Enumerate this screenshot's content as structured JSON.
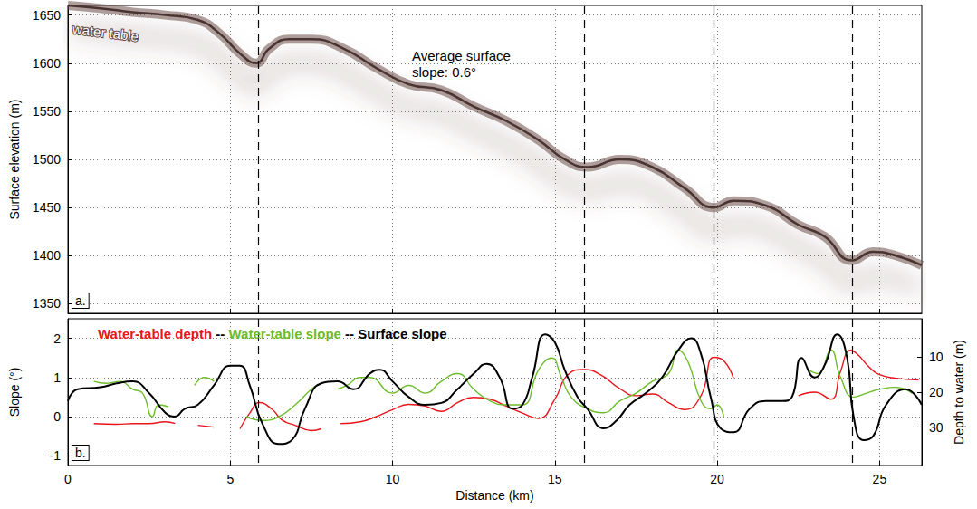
{
  "chart_data": [
    {
      "type": "line",
      "panel_label": "a.",
      "y_label": "Surface elevation (m)",
      "annotations": [
        "water table",
        "Average surface slope: 0.6°"
      ],
      "xlim": [
        0,
        26.3
      ],
      "xticks": [
        0,
        5,
        10,
        15,
        20,
        25
      ],
      "ylim": [
        1340,
        1660
      ],
      "yticks": [
        1350,
        1400,
        1450,
        1500,
        1550,
        1600,
        1650
      ],
      "grid": true,
      "tick_labels": "y",
      "vlines": [
        5.85,
        15.9,
        19.9,
        24.15
      ],
      "series": [
        {
          "color": "#4a3431",
          "x": [
            0,
            1,
            2,
            3,
            4,
            4.7,
            5.3,
            5.8,
            6.2,
            6.8,
            7.5,
            8.5,
            9.5,
            10.5,
            11.5,
            12.5,
            13.5,
            14.5,
            15.3,
            16,
            17,
            18,
            19,
            19.9,
            20.5,
            21.5,
            22.5,
            23.3,
            24.15,
            24.8,
            25.5,
            26.3
          ],
          "values": [
            1660,
            1657,
            1653,
            1650,
            1645,
            1630,
            1610,
            1600,
            1615,
            1625,
            1625,
            1615,
            1595,
            1578,
            1572,
            1555,
            1540,
            1520,
            1500,
            1492,
            1500,
            1492,
            1470,
            1450,
            1457,
            1452,
            1432,
            1420,
            1395,
            1404,
            1400,
            1390
          ]
        }
      ]
    },
    {
      "type": "line",
      "panel_label": "b.",
      "x_label": "Distance (km)",
      "y_label": "Slope (°)",
      "y2_label": "Depth to water (m)",
      "legend": "upper left",
      "legend_separator": " -- ",
      "xlim": [
        0,
        26.3
      ],
      "xticks": [
        0,
        5,
        10,
        15,
        20,
        25
      ],
      "ylim": [
        -1.25,
        2.5
      ],
      "yticks": [
        -1,
        0,
        1,
        2
      ],
      "y2lim": [
        41,
        -1
      ],
      "y2ticks": [
        10,
        20,
        30
      ],
      "grid": true,
      "vlines": [
        5.85,
        15.9,
        19.9,
        24.15
      ],
      "series": [
        {
          "name": "Water-table depth",
          "color": "#e8141a",
          "axis": "y2",
          "x": [
            0.8,
            1.5,
            2,
            2.5,
            3,
            3.3,
            3.6,
            4,
            4.5,
            4.9,
            5.3,
            5.6,
            5.9,
            6.3,
            6.6,
            7,
            7.5,
            7.8,
            8.1,
            8.4,
            9,
            9.5,
            10,
            10.5,
            11,
            11.5,
            12,
            12.5,
            13,
            13.5,
            14,
            14.5,
            15,
            15.4,
            15.9,
            16.4,
            17,
            17.5,
            18,
            18.5,
            19,
            19.5,
            19.9,
            20.2,
            20.5,
            21.5,
            22.5,
            23,
            23.5,
            23.8,
            24.1,
            24.3,
            24.7,
            25,
            25.5,
            26.2
          ],
          "values": [
            29,
            29.2,
            29,
            29,
            28.5,
            29,
            null,
            29.5,
            30,
            null,
            30.5,
            26,
            23,
            25,
            28,
            29.5,
            31,
            30.5,
            null,
            29,
            28.5,
            27,
            25,
            23.5,
            24,
            25.5,
            23,
            21.5,
            22,
            24,
            26,
            27.5,
            22,
            15,
            13.5,
            15,
            19,
            21,
            20.5,
            23,
            25,
            21,
            10,
            11,
            16,
            null,
            21,
            20,
            22,
            14,
            8,
            9,
            13,
            15,
            16,
            16.5
          ]
        },
        {
          "name": "Water-table slope",
          "color": "#6cbd2a",
          "x": [
            0.8,
            1.2,
            1.6,
            2,
            2.3,
            2.6,
            2.8,
            3.1,
            3.5,
            3.9,
            4.2,
            4.5,
            4.8,
            5.5,
            6,
            6.5,
            7,
            7.5,
            7.8,
            8.05,
            8.3,
            8.6,
            9,
            9.3,
            10,
            10.5,
            11,
            11.5,
            12,
            12.5,
            13,
            13.5,
            14,
            14.5,
            14.9,
            15.2,
            15.5,
            16,
            16.5,
            17,
            17.5,
            18,
            18.5,
            18.8,
            19.1,
            19.5,
            19.8,
            20,
            20.2,
            21.5,
            22.8,
            23.1,
            23.5,
            23.8,
            24.2,
            24.6,
            25,
            25.5,
            26
          ],
          "values": [
            0.9,
            0.85,
            0.9,
            0.7,
            0.6,
            0,
            0.3,
            0.25,
            null,
            0.8,
            1.0,
            0.9,
            null,
            0,
            -0.1,
            0,
            0.3,
            0.7,
            0.85,
            null,
            0.7,
            0.8,
            1.0,
            1.0,
            0.6,
            0.8,
            0.6,
            0.9,
            1.1,
            0.7,
            0.4,
            0.3,
            0.3,
            1.2,
            1.5,
            1.0,
            0.5,
            0.2,
            0.1,
            0.4,
            0.6,
            0.9,
            1.1,
            1.7,
            1.4,
            0.4,
            0.2,
            0.3,
            0,
            null,
            1.2,
            1.1,
            1.7,
            1.0,
            0.5,
            0.6,
            0.7,
            0.75,
            0.6
          ]
        },
        {
          "name": "Surface slope",
          "color": "#000000",
          "x": [
            0,
            0.3,
            1,
            1.5,
            2,
            2.5,
            3,
            3.3,
            3.6,
            4,
            4.5,
            5,
            5.3,
            5.6,
            6,
            6.5,
            6.9,
            7.3,
            7.8,
            8.3,
            8.8,
            9.3,
            9.6,
            10,
            10.5,
            11,
            11.5,
            12,
            12.5,
            12.9,
            13.3,
            13.7,
            14,
            14.3,
            14.7,
            15,
            15.3,
            15.7,
            16,
            16.5,
            16.9,
            17.3,
            17.8,
            18.3,
            18.8,
            19.2,
            19.5,
            19.8,
            20.1,
            20.5,
            21,
            21.5,
            22,
            22.3,
            22.6,
            23,
            23.3,
            23.7,
            24,
            24.2,
            24.5,
            24.8,
            25.2,
            25.8,
            26.3
          ],
          "values": [
            0.4,
            0.7,
            0.75,
            0.85,
            0.9,
            0.6,
            0.1,
            0,
            0.2,
            0.3,
            0.8,
            1.3,
            1.3,
            0.8,
            -0.2,
            -0.7,
            -0.6,
            0.2,
            0.85,
            0.9,
            0.7,
            1.1,
            1.2,
            0.9,
            0.5,
            0.3,
            0.35,
            0.7,
            1.1,
            1.35,
            1.0,
            0.2,
            0.3,
            1.0,
            2.1,
            1.9,
            1.2,
            0.5,
            0.2,
            -0.3,
            -0.1,
            0.3,
            0.6,
            1.0,
            1.7,
            2.0,
            1.6,
            0.5,
            -0.3,
            -0.4,
            0.2,
            0.4,
            0.4,
            0.5,
            1.5,
            1.0,
            1.3,
            2.1,
            1.5,
            0,
            -0.6,
            -0.5,
            0.3,
            0.7,
            0.3
          ]
        }
      ]
    }
  ]
}
